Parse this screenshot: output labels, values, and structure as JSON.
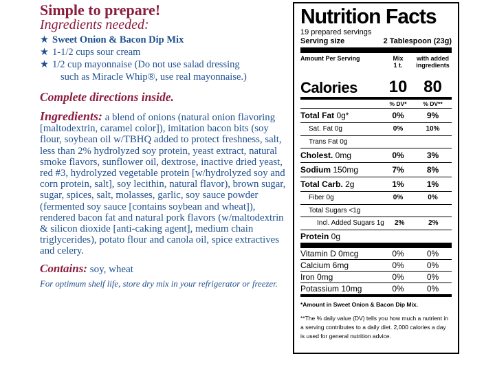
{
  "left": {
    "heading": "Simple to prepare!",
    "ingredients_needed": "Ingredients needed:",
    "items": [
      {
        "star": "★",
        "text": "Sweet Onion & Bacon Dip Mix",
        "bold": true
      },
      {
        "star": "★",
        "text": "1-1/2 cups sour cream",
        "bold": false
      },
      {
        "star": "★",
        "text": "1/2 cup mayonnaise (Do not use salad dressing",
        "bold": false
      }
    ],
    "item_continuation": "such as Miracle Whip®, use real mayonnaise.)",
    "directions": "Complete directions inside.",
    "ingredients_label": "Ingredients:",
    "ingredients_text": " a blend of onions (natural onion flavoring [maltodextrin, caramel color]), imitation bacon bits (soy flour, soybean oil w/TBHQ added to protect freshness, salt, less than 2% hydrolyzed soy protein, yeast extract, natural smoke flavors, sunflower oil, dextrose, inactive dried yeast, red #3, hydrolyzed vegetable protein [w/hydrolyzed soy and corn protein, salt], soy lecithin, natural flavor), brown sugar, sugar, spices, salt, molasses, garlic, soy sauce powder (fermented soy sauce [contains soybean and wheat]), rendered bacon fat and natural pork flavors (w/maltodextrin & silicon dioxide [anti-caking agent], medium chain triglycerides), potato flour and canola oil, spice extractives and celery.",
    "contains_label": "Contains:",
    "contains_text": " soy, wheat",
    "storage": "For optimum shelf life, store dry mix in your refrigerator or freezer.",
    "colors": {
      "maroon": "#8a1c3d",
      "blue": "#1e4f8f"
    }
  },
  "nutrition": {
    "title": "Nutrition Facts",
    "servings": "19 prepared servings",
    "serving_size_label": "Serving size",
    "serving_size_value": "2 Tablespoon (23g)",
    "col_header_amount": "Amount Per Serving",
    "col_header_mix": "Mix\n1 t.",
    "col_header_added": "with added\ningredients",
    "calories_label": "Calories",
    "calories_mix": "10",
    "calories_added": "80",
    "dv_mix": "% DV*",
    "dv_added": "% DV**",
    "rows": [
      {
        "label": "Total Fat",
        "amount": " 0g*",
        "mix": "0%",
        "added": "9%",
        "style": "main"
      },
      {
        "label": "Sat. Fat 0g",
        "amount": "",
        "mix": "0%",
        "added": "10%",
        "style": "sub"
      },
      {
        "label": "Trans Fat 0g",
        "amount": "",
        "mix": "",
        "added": "",
        "style": "sub"
      },
      {
        "label": "Cholest.",
        "amount": " 0mg",
        "mix": "0%",
        "added": "3%",
        "style": "main"
      },
      {
        "label": "Sodium",
        "amount": " 150mg",
        "mix": "7%",
        "added": "8%",
        "style": "main"
      },
      {
        "label": "Total Carb.",
        "amount": " 2g",
        "mix": "1%",
        "added": "1%",
        "style": "main"
      },
      {
        "label": "Fiber 0g",
        "amount": "",
        "mix": "0%",
        "added": "0%",
        "style": "sub"
      },
      {
        "label": "Total Sugars <1g",
        "amount": "",
        "mix": "",
        "added": "",
        "style": "sub"
      },
      {
        "label": "Incl. Added Sugars 1g",
        "amount": "",
        "mix": "2%",
        "added": "2%",
        "style": "sub3"
      }
    ],
    "protein_label": "Protein",
    "protein_amount": " 0g",
    "vitamins": [
      {
        "label": "Vitamin D 0mcg",
        "mix": "0%",
        "added": "0%"
      },
      {
        "label": "Calcium 6mg",
        "mix": "0%",
        "added": "0%"
      },
      {
        "label": "Iron 0mg",
        "mix": "0%",
        "added": "0%"
      },
      {
        "label": "Potassium 10mg",
        "mix": "0%",
        "added": "0%"
      }
    ],
    "footnote1": "*Amount in Sweet Onion & Bacon Dip Mix.",
    "footnote2": "**The % daily value (DV) tells you how much a nutrient in a serving contributes to a daily diet. 2,000 calories a day is used for general nutrition advice."
  }
}
